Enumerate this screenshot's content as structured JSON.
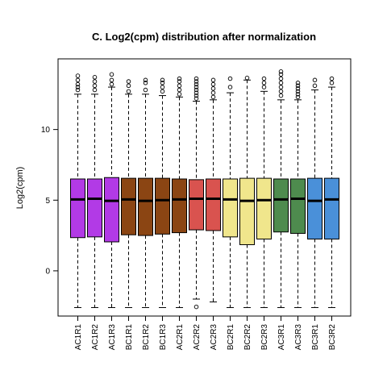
{
  "chart_data": {
    "type": "boxplot",
    "title": "C. Log2(cpm) distribution after normalization",
    "xlabel": "",
    "ylabel": "Log2(cpm)",
    "ylim": [
      -3.2,
      15.0
    ],
    "yticks": [
      0,
      5,
      10
    ],
    "grid": false,
    "legend": "none",
    "series": [
      {
        "label": "AC1R1",
        "color": "#b23ae6",
        "whisker_low": -2.6,
        "q1": 2.35,
        "median": 5.05,
        "q3": 6.5,
        "whisker_high": 12.5,
        "outliers": [
          12.8,
          13.0,
          13.2,
          13.5,
          13.8
        ]
      },
      {
        "label": "AC1R2",
        "color": "#b23ae6",
        "whisker_low": -2.6,
        "q1": 2.4,
        "median": 5.1,
        "q3": 6.5,
        "whisker_high": 12.5,
        "outliers": [
          12.8,
          13.1,
          13.4,
          13.7
        ]
      },
      {
        "label": "AC1R3",
        "color": "#b23ae6",
        "whisker_low": -2.6,
        "q1": 2.05,
        "median": 4.95,
        "q3": 6.6,
        "whisker_high": 13.0,
        "outliers": [
          13.2,
          13.5,
          13.9
        ]
      },
      {
        "label": "BC1R1",
        "color": "#8b4513",
        "whisker_low": -2.6,
        "q1": 2.55,
        "median": 5.05,
        "q3": 6.55,
        "whisker_high": 12.5,
        "outliers": [
          12.7,
          13.1,
          13.4
        ]
      },
      {
        "label": "BC1R2",
        "color": "#8b4513",
        "whisker_low": -2.6,
        "q1": 2.5,
        "median": 4.95,
        "q3": 6.55,
        "whisker_high": 12.5,
        "outliers": [
          12.8,
          13.3,
          13.5
        ]
      },
      {
        "label": "BC1R3",
        "color": "#8b4513",
        "whisker_low": -2.6,
        "q1": 2.6,
        "median": 5.0,
        "q3": 6.55,
        "whisker_high": 12.4,
        "outliers": [
          12.7,
          13.0,
          13.3,
          13.5
        ]
      },
      {
        "label": "AC2R1",
        "color": "#8b4513",
        "whisker_low": -2.6,
        "q1": 2.7,
        "median": 5.05,
        "q3": 6.5,
        "whisker_high": 12.3,
        "outliers": [
          12.5,
          12.8,
          13.1,
          13.4,
          13.6
        ]
      },
      {
        "label": "AC2R2",
        "color": "#d9534f",
        "whisker_low": -2.0,
        "q1": 2.9,
        "median": 5.1,
        "q3": 6.45,
        "whisker_high": 12.0,
        "outliers": [
          -2.55,
          12.2,
          12.4,
          12.6,
          12.8,
          13.0,
          13.2,
          13.4,
          13.6
        ]
      },
      {
        "label": "AC2R3",
        "color": "#d9534f",
        "whisker_low": -2.2,
        "q1": 2.85,
        "median": 5.1,
        "q3": 6.5,
        "whisker_high": 12.1,
        "outliers": [
          12.3,
          12.6,
          12.9,
          13.2,
          13.5
        ]
      },
      {
        "label": "BC2R1",
        "color": "#f0e68c",
        "whisker_low": -2.6,
        "q1": 2.4,
        "median": 5.05,
        "q3": 6.5,
        "whisker_high": 12.6,
        "outliers": [
          13.0,
          13.6
        ]
      },
      {
        "label": "BC2R2",
        "color": "#f0e68c",
        "whisker_low": -2.6,
        "q1": 1.85,
        "median": 4.95,
        "q3": 6.55,
        "whisker_high": 13.5,
        "outliers": [
          13.65
        ]
      },
      {
        "label": "BC2R3",
        "color": "#f0e68c",
        "whisker_low": -2.6,
        "q1": 2.25,
        "median": 5.0,
        "q3": 6.55,
        "whisker_high": 12.7,
        "outliers": [
          13.0,
          13.3,
          13.6
        ]
      },
      {
        "label": "AC3R1",
        "color": "#4e8b4e",
        "whisker_low": -2.6,
        "q1": 2.75,
        "median": 5.05,
        "q3": 6.5,
        "whisker_high": 12.1,
        "outliers": [
          12.4,
          12.7,
          13.0,
          13.3,
          13.6,
          13.9,
          14.1
        ]
      },
      {
        "label": "AC3R3",
        "color": "#4e8b4e",
        "whisker_low": -2.6,
        "q1": 2.65,
        "median": 5.1,
        "q3": 6.5,
        "whisker_high": 12.1,
        "outliers": [
          12.3,
          12.5,
          12.7,
          12.9,
          13.1,
          13.3
        ]
      },
      {
        "label": "BC3R1",
        "color": "#4a90d9",
        "whisker_low": -2.6,
        "q1": 2.25,
        "median": 4.95,
        "q3": 6.55,
        "whisker_high": 12.8,
        "outliers": [
          13.1,
          13.5
        ]
      },
      {
        "label": "BC3R2",
        "color": "#4a90d9",
        "whisker_low": -2.6,
        "q1": 2.25,
        "median": 5.05,
        "q3": 6.55,
        "whisker_high": 13.0,
        "outliers": [
          13.3,
          13.6
        ]
      }
    ]
  }
}
